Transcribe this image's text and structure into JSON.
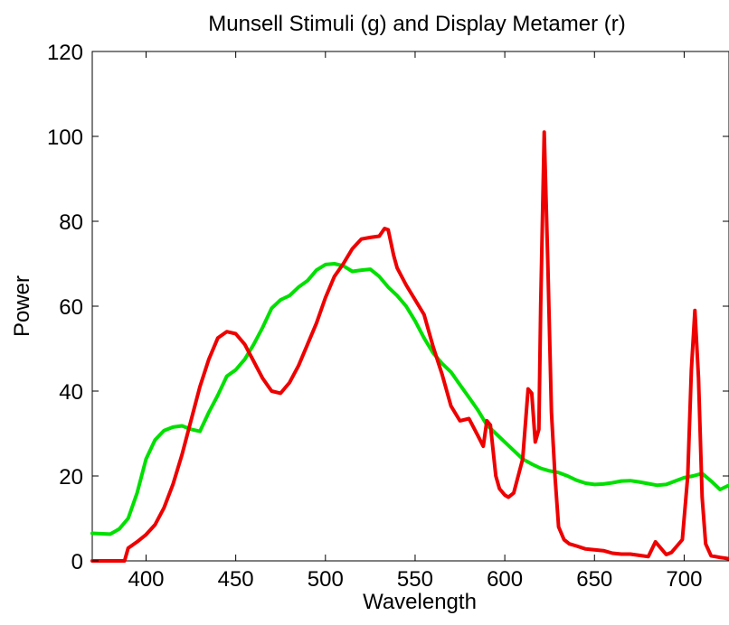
{
  "chart_data": {
    "type": "line",
    "title": "Munsell Stimuli (g) and Display Metamer (r)",
    "xlabel": "Wavelength",
    "ylabel": "Power",
    "xlim": [
      370,
      725
    ],
    "ylim": [
      0,
      120
    ],
    "xticks": [
      400,
      450,
      500,
      550,
      600,
      650,
      700
    ],
    "yticks": [
      0,
      20,
      40,
      60,
      80,
      100,
      120
    ],
    "grid": false,
    "legend": "none",
    "series": [
      {
        "color": "#00e000",
        "x": [
          370,
          380,
          385,
          390,
          395,
          400,
          405,
          410,
          415,
          420,
          425,
          430,
          435,
          440,
          445,
          450,
          455,
          460,
          465,
          470,
          475,
          480,
          485,
          490,
          495,
          500,
          505,
          510,
          515,
          520,
          525,
          530,
          535,
          540,
          545,
          550,
          555,
          560,
          565,
          570,
          575,
          580,
          585,
          590,
          595,
          600,
          605,
          610,
          615,
          620,
          625,
          630,
          635,
          640,
          645,
          650,
          655,
          660,
          665,
          670,
          675,
          680,
          685,
          690,
          695,
          700,
          705,
          710,
          715,
          720,
          725
        ],
        "y": [
          6.5,
          6.3,
          7.5,
          10.0,
          16.0,
          24.0,
          28.5,
          30.7,
          31.5,
          31.8,
          31.0,
          30.5,
          35.0,
          39.0,
          43.5,
          45.0,
          47.5,
          51.0,
          55.0,
          59.5,
          61.5,
          62.5,
          64.5,
          66.0,
          68.5,
          69.8,
          70.0,
          69.5,
          68.2,
          68.5,
          68.7,
          67.0,
          64.5,
          62.5,
          60.0,
          56.5,
          52.5,
          49.0,
          46.5,
          44.5,
          41.5,
          38.5,
          35.5,
          32.0,
          30.0,
          28.0,
          26.0,
          24.0,
          22.8,
          21.8,
          21.2,
          20.8,
          20.0,
          19.0,
          18.3,
          18.0,
          18.1,
          18.4,
          18.8,
          18.9,
          18.6,
          18.2,
          17.8,
          18.0,
          18.8,
          19.6,
          20.0,
          20.6,
          18.8,
          16.8,
          17.8
        ]
      },
      {
        "color": "#ee0000",
        "x": [
          370,
          380,
          388,
          390,
          395,
          400,
          405,
          410,
          415,
          420,
          425,
          430,
          435,
          440,
          445,
          450,
          455,
          460,
          465,
          470,
          475,
          480,
          485,
          490,
          495,
          500,
          505,
          510,
          515,
          520,
          525,
          530,
          533,
          535,
          538,
          540,
          545,
          550,
          555,
          560,
          565,
          570,
          575,
          580,
          585,
          588,
          590,
          592,
          595,
          597,
          600,
          602,
          605,
          610,
          613,
          615,
          617,
          619,
          620,
          622,
          624,
          626,
          628,
          630,
          633,
          636,
          640,
          645,
          650,
          655,
          660,
          665,
          670,
          675,
          680,
          684,
          687,
          690,
          693,
          696,
          699,
          702,
          704,
          706,
          708,
          710,
          712,
          715,
          720,
          725
        ],
        "y": [
          0,
          0,
          0,
          3.0,
          4.5,
          6.2,
          8.5,
          12.5,
          18.0,
          25.0,
          33.0,
          41.0,
          47.5,
          52.5,
          54.0,
          53.5,
          51.0,
          47.0,
          43.0,
          40.0,
          39.5,
          42.0,
          46.0,
          51.0,
          56.0,
          62.0,
          67.0,
          70.0,
          73.5,
          75.8,
          76.2,
          76.5,
          78.3,
          78.0,
          72.0,
          69.0,
          65.0,
          61.5,
          58.0,
          50.5,
          44.0,
          36.5,
          33.0,
          33.5,
          29.5,
          27.0,
          33.0,
          32.0,
          20.0,
          17.0,
          15.5,
          15.0,
          16.0,
          24.0,
          40.5,
          39.5,
          28.0,
          31.0,
          60.0,
          101.0,
          70.0,
          35.0,
          20.0,
          8.0,
          5.0,
          4.0,
          3.5,
          2.8,
          2.6,
          2.4,
          1.8,
          1.6,
          1.6,
          1.3,
          1.0,
          4.5,
          3.0,
          1.5,
          2.0,
          3.5,
          5.0,
          20.0,
          45.0,
          59.0,
          43.0,
          15.0,
          4.0,
          1.2,
          0.8,
          0.5
        ]
      }
    ]
  }
}
